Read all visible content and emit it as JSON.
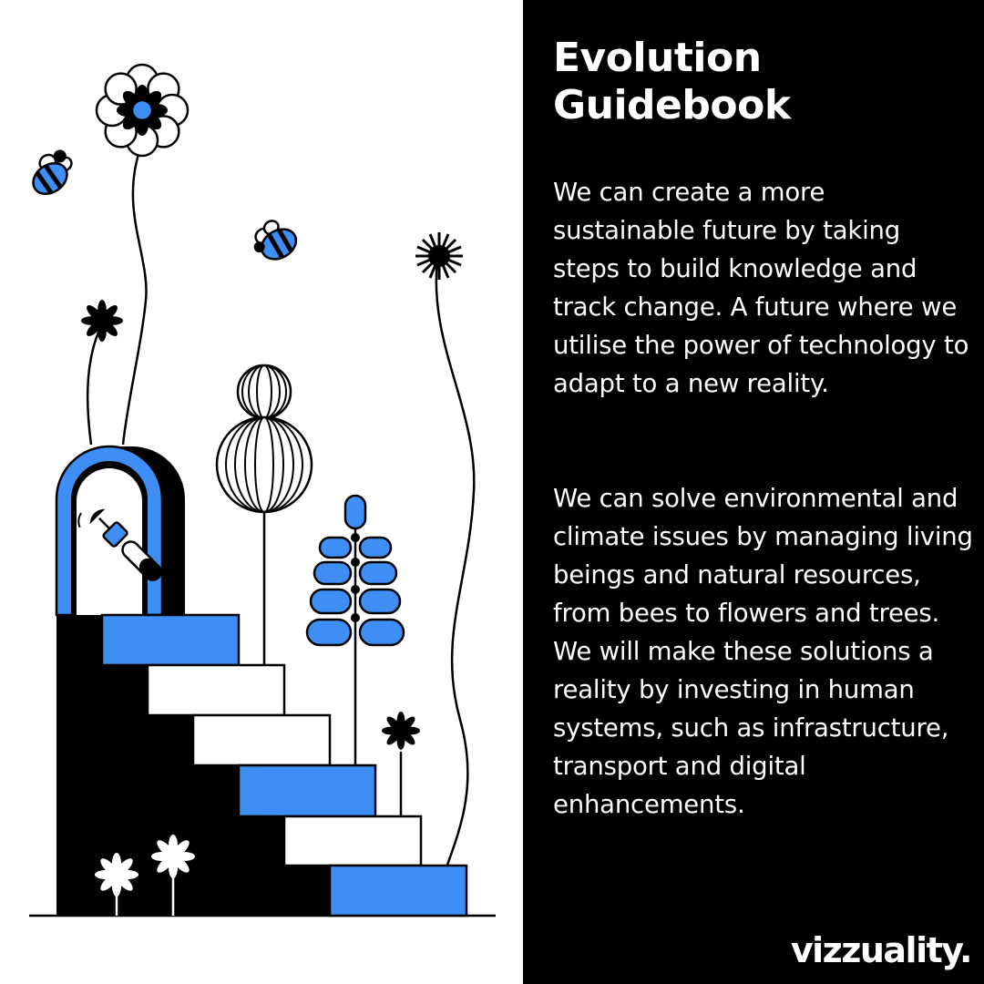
{
  "title": "Evolution Guidebook",
  "paragraphs": [
    "We can create a more sustainable future by taking steps to build knowledge and track change. A future where we utilise the power of technology to adapt to a new reality.",
    "We can solve environmental and climate issues by managing living beings and natural resources, from bees to flowers and trees. We will make these solutions a reality by investing in human systems, such as infrastructure, transport and digital enhancements."
  ],
  "logo": "vizzuality.",
  "colors": {
    "accent": "#3f8ef5",
    "ink": "#000000",
    "paper": "#ffffff"
  },
  "illustration": {
    "icons": [
      "bee-icon",
      "flower-icon",
      "tree-icon",
      "lavender-icon",
      "staircase-icon",
      "satellite-icon",
      "archway-icon"
    ]
  }
}
